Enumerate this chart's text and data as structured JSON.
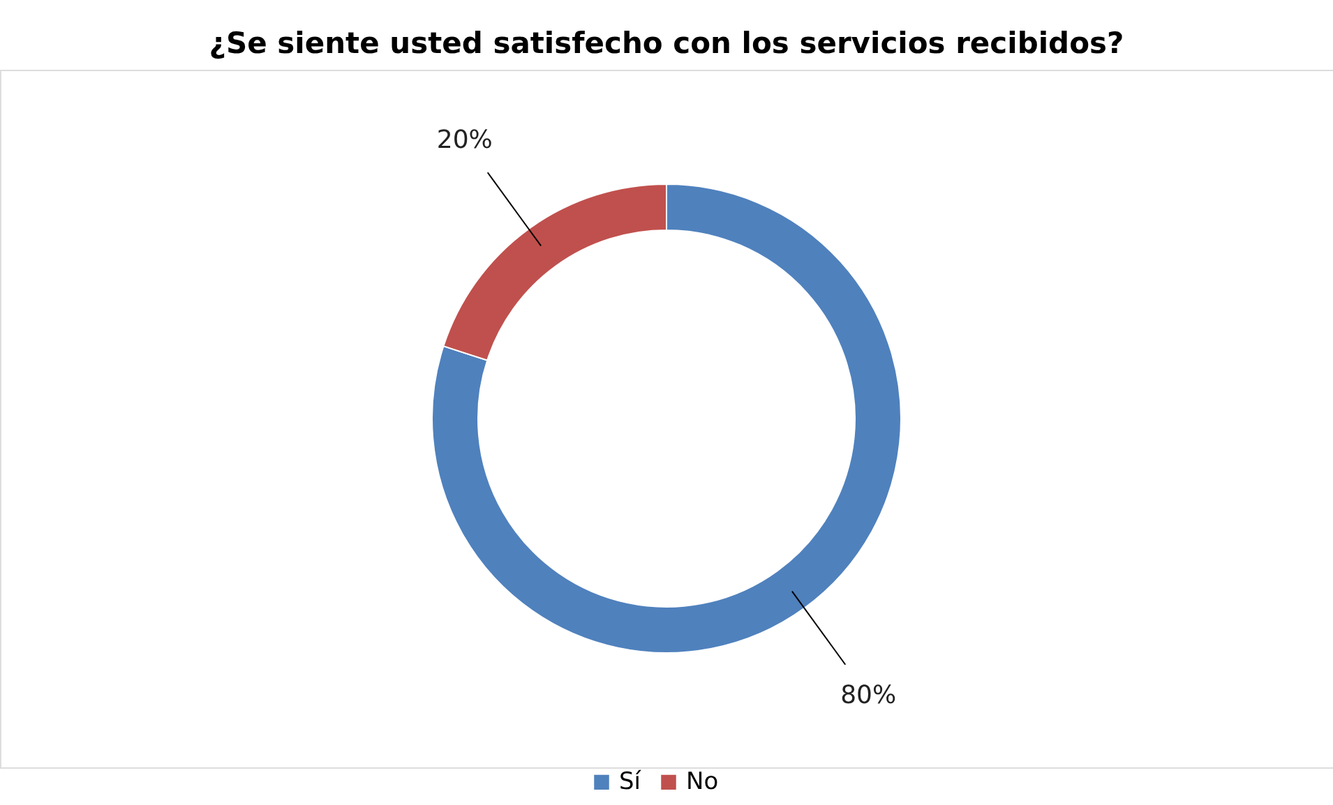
{
  "chart_data": {
    "type": "donut",
    "title": "¿Se siente usted satisfecho con los servicios recibidos?",
    "categories": [
      "Sí",
      "No"
    ],
    "values": [
      80,
      20
    ],
    "colors": [
      "#4f81bd",
      "#c0504d"
    ],
    "value_labels": [
      "80%",
      "20%"
    ],
    "legend": "bottom"
  }
}
